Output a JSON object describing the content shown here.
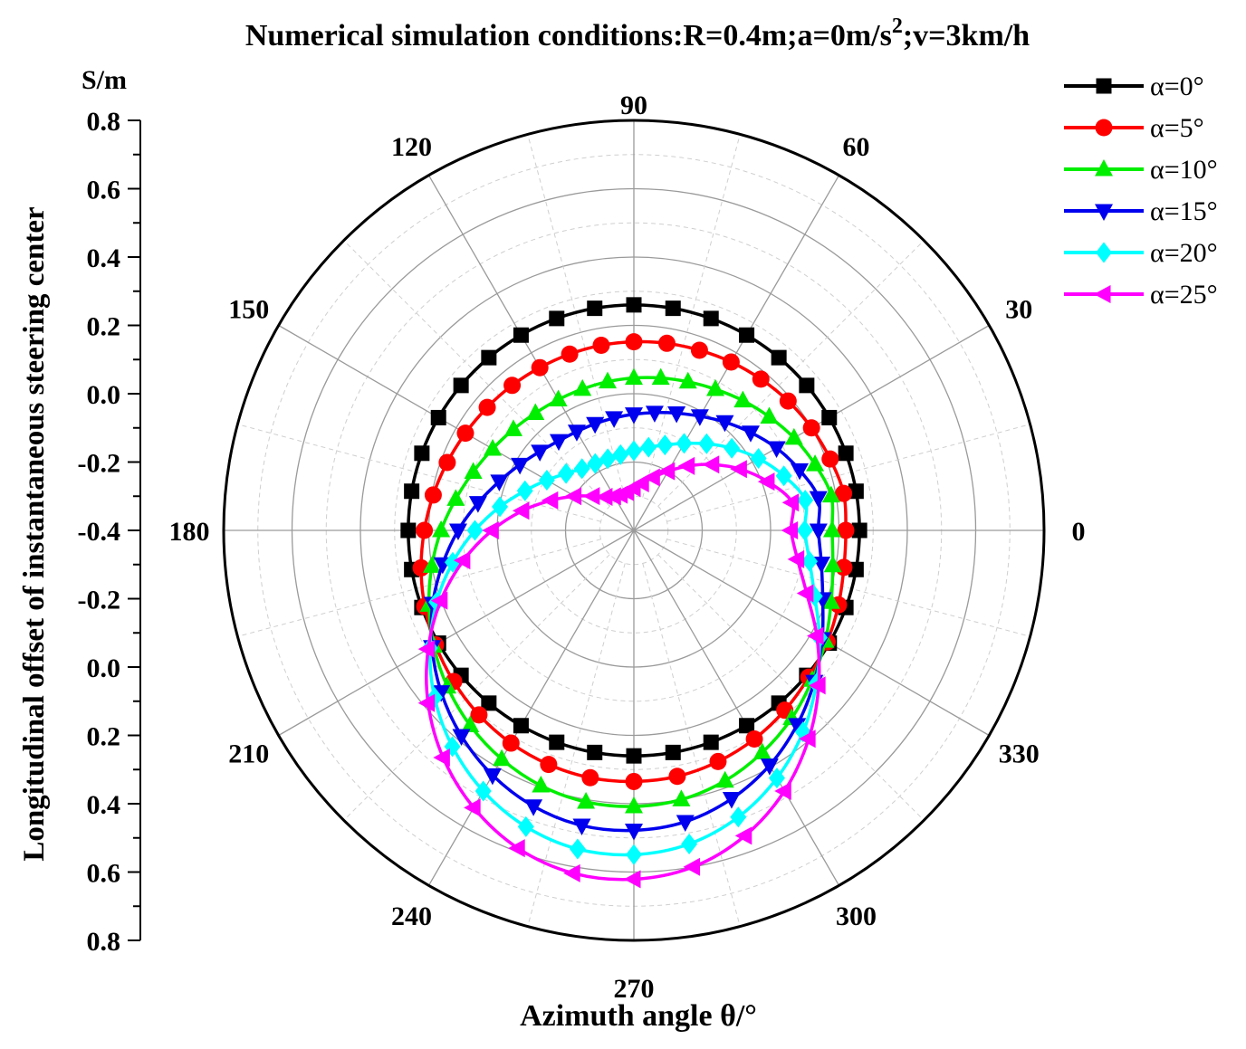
{
  "chart_data": {
    "type": "polar-line",
    "title_prefix": "Numerical simulation conditions:R=0.4m;a=0m/s",
    "title_sup": "2",
    "title_suffix": ";v=3km/h",
    "xlabel": "Azimuth angle θ/°",
    "ylabel": "Longitudinal offset of instantaneous steering center",
    "yunit": "S/m",
    "theta_unit": "degrees",
    "theta_ticks": [
      0,
      30,
      60,
      90,
      120,
      150,
      180,
      210,
      240,
      270,
      300,
      330
    ],
    "theta_tick_labels": [
      "0",
      "30",
      "60",
      "90",
      "120",
      "150",
      "180",
      "210",
      "240",
      "270",
      "300",
      "330"
    ],
    "radial_axis": {
      "center_value": -0.4,
      "range": [
        -0.4,
        0.8
      ],
      "major_step": 0.2,
      "minor_step": 0.1,
      "tick_labels": [
        "0.8",
        "0.6",
        "0.4",
        "0.2",
        "0.0",
        "-0.2",
        "-0.4",
        "-0.2",
        "0.0",
        "0.2",
        "0.4",
        "0.6",
        "0.8"
      ]
    },
    "grid": true,
    "legend_position": "top-right",
    "series": [
      {
        "name": "α=0°",
        "color": "#000000",
        "marker": "square",
        "r": [
          0.26,
          0.26,
          0.26,
          0.26,
          0.26,
          0.26,
          0.26,
          0.26,
          0.26,
          0.26,
          0.26,
          0.26,
          0.26,
          0.26,
          0.26,
          0.26,
          0.26,
          0.26,
          0.26,
          0.26,
          0.26,
          0.26,
          0.26,
          0.26,
          0.26,
          0.26,
          0.26,
          0.26,
          0.26,
          0.26,
          0.26,
          0.26,
          0.26,
          0.26,
          0.26,
          0.26
        ]
      },
      {
        "name": "α=5°",
        "color": "#ff0000",
        "marker": "circle",
        "r": [
          0.22,
          0.223,
          0.211,
          0.2,
          0.189,
          0.178,
          0.169,
          0.161,
          0.156,
          0.152,
          0.15,
          0.149,
          0.15,
          0.154,
          0.16,
          0.169,
          0.181,
          0.196,
          0.213,
          0.232,
          0.251,
          0.27,
          0.288,
          0.305,
          0.319,
          0.329,
          0.335,
          0.335,
          0.331,
          0.32,
          0.305,
          0.287,
          0.268,
          0.253,
          0.237,
          0.224
        ]
      },
      {
        "name": "α=10°",
        "color": "#00ee00",
        "marker": "triangle-up",
        "r": [
          0.18,
          0.186,
          0.164,
          0.141,
          0.117,
          0.096,
          0.077,
          0.063,
          0.053,
          0.046,
          0.042,
          0.04,
          0.042,
          0.048,
          0.06,
          0.077,
          0.1,
          0.129,
          0.164,
          0.2,
          0.238,
          0.276,
          0.312,
          0.345,
          0.373,
          0.395,
          0.407,
          0.408,
          0.4,
          0.38,
          0.351,
          0.318,
          0.281,
          0.247,
          0.214,
          0.191
        ]
      },
      {
        "name": "α=15°",
        "color": "#0000ee",
        "marker": "triangle-down",
        "r": [
          0.14,
          0.148,
          0.116,
          0.082,
          0.046,
          0.014,
          -0.014,
          -0.035,
          -0.05,
          -0.06,
          -0.066,
          -0.068,
          -0.066,
          -0.058,
          -0.041,
          -0.015,
          0.019,
          0.063,
          0.114,
          0.168,
          0.226,
          0.282,
          0.336,
          0.385,
          0.427,
          0.459,
          0.477,
          0.478,
          0.466,
          0.436,
          0.394,
          0.343,
          0.289,
          0.236,
          0.188,
          0.157
        ]
      },
      {
        "name": "α=20°",
        "color": "#00ffff",
        "marker": "diamond",
        "r": [
          0.1,
          0.109,
          0.067,
          0.021,
          -0.026,
          -0.069,
          -0.106,
          -0.134,
          -0.153,
          -0.167,
          -0.175,
          -0.177,
          -0.174,
          -0.164,
          -0.141,
          -0.106,
          -0.061,
          -0.002,
          0.065,
          0.138,
          0.214,
          0.289,
          0.361,
          0.426,
          0.481,
          0.523,
          0.547,
          0.549,
          0.532,
          0.493,
          0.437,
          0.37,
          0.297,
          0.227,
          0.163,
          0.122
        ]
      },
      {
        "name": "α=25°",
        "color": "#ff00ff",
        "marker": "triangle-left",
        "r": [
          0.06,
          0.07,
          0.017,
          -0.041,
          -0.1,
          -0.154,
          -0.2,
          -0.235,
          -0.26,
          -0.276,
          -0.286,
          -0.289,
          -0.285,
          -0.272,
          -0.244,
          -0.2,
          -0.143,
          -0.069,
          0.015,
          0.106,
          0.201,
          0.295,
          0.386,
          0.468,
          0.537,
          0.59,
          0.619,
          0.621,
          0.6,
          0.551,
          0.481,
          0.396,
          0.306,
          0.218,
          0.138,
          0.086
        ]
      }
    ]
  }
}
